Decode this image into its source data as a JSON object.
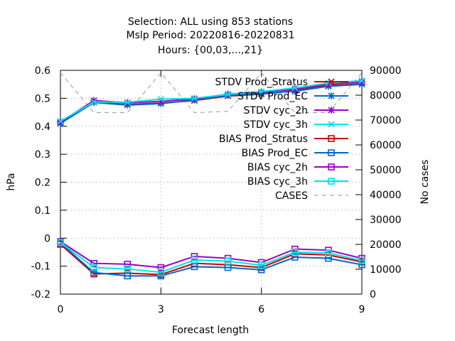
{
  "chart_data": {
    "type": "line",
    "title_lines": [
      "Selection: ALL using   853 stations",
      "Mslp   Period: 20220816-20220831",
      "Hours: {00,03,...,21}"
    ],
    "xlabel": "Forecast length",
    "ylabel": "hPa",
    "y2label": "No cases",
    "xlim": [
      0,
      9
    ],
    "ylim": [
      -0.2,
      0.6
    ],
    "y2lim": [
      0,
      90000
    ],
    "x_ticks": [
      0,
      3,
      6,
      9
    ],
    "x_tick_labels": [
      "0",
      "3",
      "6",
      "9"
    ],
    "y_ticks": [
      -0.2,
      -0.1,
      0,
      0.1,
      0.2,
      0.3,
      0.4,
      0.5,
      0.6
    ],
    "y_tick_labels": [
      "-0.2",
      "-0.1",
      "0",
      "0.1",
      "0.2",
      "0.3",
      "0.4",
      "0.5",
      "0.6"
    ],
    "y2_ticks": [
      0,
      10000,
      20000,
      30000,
      40000,
      50000,
      60000,
      70000,
      80000,
      90000
    ],
    "y2_tick_labels": [
      "0",
      "10000",
      "20000",
      "30000",
      "40000",
      "50000",
      "60000",
      "70000",
      "80000",
      "90000"
    ],
    "grid": true,
    "legend_position": "top-right",
    "x": [
      0,
      1,
      2,
      3,
      4,
      5,
      6,
      7,
      8,
      9
    ],
    "series": [
      {
        "name": "STDV Prod_Stratus",
        "color": "#cc0000",
        "marker": "x",
        "axis": "y1",
        "values": [
          0.412,
          0.487,
          0.478,
          0.483,
          0.492,
          0.508,
          0.515,
          0.527,
          0.545,
          0.552
        ]
      },
      {
        "name": "STDV Prod_EC",
        "color": "#0066cc",
        "marker": "star",
        "axis": "y1",
        "values": [
          0.41,
          0.485,
          0.476,
          0.481,
          0.494,
          0.51,
          0.517,
          0.525,
          0.543,
          0.55
        ]
      },
      {
        "name": "STDV cyc_2h",
        "color": "#9900cc",
        "marker": "star",
        "axis": "y1",
        "values": [
          0.415,
          0.492,
          0.484,
          0.489,
          0.498,
          0.515,
          0.522,
          0.532,
          0.55,
          0.558
        ]
      },
      {
        "name": "STDV cyc_3h",
        "color": "#00e5e5",
        "marker": "x",
        "axis": "y1",
        "values": [
          0.418,
          0.487,
          0.486,
          0.497,
          0.5,
          0.514,
          0.524,
          0.537,
          0.555,
          0.563
        ]
      },
      {
        "name": "BIAS Prod_Stratus",
        "color": "#cc0000",
        "marker": "square",
        "axis": "y1",
        "values": [
          -0.022,
          -0.128,
          -0.125,
          -0.13,
          -0.09,
          -0.095,
          -0.105,
          -0.056,
          -0.06,
          -0.085
        ]
      },
      {
        "name": "BIAS Prod_EC",
        "color": "#0066cc",
        "marker": "square",
        "axis": "y1",
        "values": [
          -0.017,
          -0.123,
          -0.135,
          -0.135,
          -0.102,
          -0.105,
          -0.113,
          -0.068,
          -0.072,
          -0.095
        ]
      },
      {
        "name": "BIAS cyc_2h",
        "color": "#9900cc",
        "marker": "square",
        "axis": "y1",
        "values": [
          -0.012,
          -0.09,
          -0.093,
          -0.105,
          -0.065,
          -0.072,
          -0.087,
          -0.039,
          -0.043,
          -0.072
        ]
      },
      {
        "name": "BIAS cyc_3h",
        "color": "#00e5e5",
        "marker": "square",
        "axis": "y1",
        "values": [
          -0.015,
          -0.105,
          -0.11,
          -0.122,
          -0.078,
          -0.082,
          -0.097,
          -0.05,
          -0.053,
          -0.08
        ]
      },
      {
        "name": "CASES",
        "color": "#999999",
        "marker": "none",
        "dashed": true,
        "axis": "y2",
        "values": [
          89000,
          73000,
          73000,
          89000,
          73000,
          73500,
          89000,
          73000,
          73000,
          89000
        ]
      }
    ]
  }
}
